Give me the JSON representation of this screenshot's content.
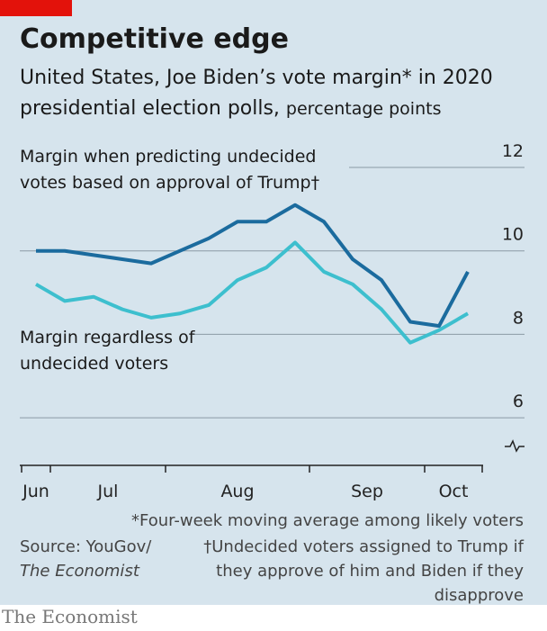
{
  "chart_data": {
    "type": "line",
    "title": "Competitive edge",
    "subtitle": "United States, Joe Biden’s vote margin* in 2020 presidential election polls,",
    "unit": "percentage points",
    "x": [
      0,
      1,
      2,
      3,
      4,
      5,
      6,
      7,
      8,
      9,
      10,
      11,
      12,
      13,
      14,
      15
    ],
    "xlim": [
      -0.5,
      15.5
    ],
    "xticks": [
      -0.5,
      0.5,
      4.5,
      9.5,
      13.5,
      15.5
    ],
    "xlabels": [
      {
        "value": 0,
        "label": "Jun"
      },
      {
        "value": 2.5,
        "label": "Jul"
      },
      {
        "value": 7,
        "label": "Aug"
      },
      {
        "value": 11.5,
        "label": "Sep"
      },
      {
        "value": 14.5,
        "label": "Oct"
      }
    ],
    "ylim": [
      4.86,
      12
    ],
    "yticks": [
      6,
      8,
      10,
      12
    ],
    "grid": true,
    "series": [
      {
        "name": "Margin when predicting undecided votes based on approval of Trump†",
        "color": "#1b6b9e",
        "values": [
          10.0,
          10.0,
          9.9,
          9.8,
          9.7,
          10.0,
          10.3,
          10.7,
          10.7,
          11.1,
          10.7,
          9.8,
          9.3,
          8.3,
          8.2,
          9.5
        ]
      },
      {
        "name": "Margin regardless of undecided voters",
        "color": "#3dbfce",
        "values": [
          9.2,
          8.8,
          8.9,
          8.6,
          8.4,
          8.5,
          8.7,
          9.3,
          9.6,
          10.2,
          9.5,
          9.2,
          8.6,
          7.8,
          8.1,
          8.5
        ]
      }
    ],
    "notes": [
      "*Four-week moving average among likely voters",
      "†Undecided voters assigned to Trump if they approve of him and Biden if they disapprove"
    ],
    "source": "Source: YouGov/",
    "source_italic": "The Economist",
    "brand": "The Economist"
  }
}
